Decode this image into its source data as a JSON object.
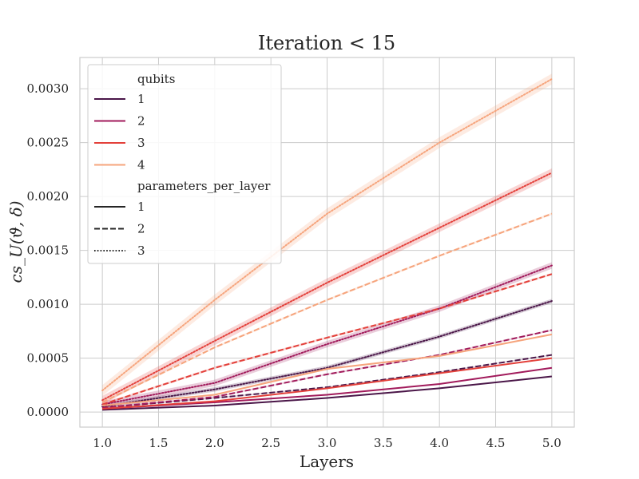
{
  "chart_data": {
    "type": "line",
    "title": "Iteration < 15",
    "xlabel": "Layers",
    "ylabel": "cs_U(ϑ, δ)",
    "xlim": [
      0.8,
      5.2
    ],
    "ylim": [
      -0.00014,
      0.00329
    ],
    "x_ticks": [
      1.0,
      1.5,
      2.0,
      2.5,
      3.0,
      3.5,
      4.0,
      4.5,
      5.0
    ],
    "x_tick_labels": [
      "1.0",
      "1.5",
      "2.0",
      "2.5",
      "3.0",
      "3.5",
      "4.0",
      "4.5",
      "5.0"
    ],
    "y_ticks": [
      0.0,
      0.0005,
      0.001,
      0.0015,
      0.002,
      0.0025,
      0.003
    ],
    "y_tick_labels": [
      "0.0000",
      "0.0005",
      "0.0010",
      "0.0015",
      "0.0020",
      "0.0025",
      "0.0030"
    ],
    "grid": true,
    "legend_position": "upper-left",
    "legend": {
      "hue_title": "qubits",
      "hue_entries": [
        {
          "label": "1",
          "color": "#4a1648"
        },
        {
          "label": "2",
          "color": "#a11a5b"
        },
        {
          "label": "3",
          "color": "#e3403a"
        },
        {
          "label": "4",
          "color": "#f6a47c"
        }
      ],
      "style_title": "parameters_per_layer",
      "style_entries": [
        {
          "label": "1",
          "dash": "solid"
        },
        {
          "label": "2",
          "dash": "dashed"
        },
        {
          "label": "3",
          "dash": "dotted"
        }
      ]
    },
    "x": [
      1,
      2,
      3,
      4,
      5
    ],
    "series": [
      {
        "qubits": "1",
        "parameters_per_layer": "1",
        "color": "#4a1648",
        "dash": "solid",
        "values": [
          2e-05,
          6e-05,
          0.00013,
          0.00022,
          0.00033
        ],
        "band": 4e-06
      },
      {
        "qubits": "1",
        "parameters_per_layer": "2",
        "color": "#4a1648",
        "dash": "dashed",
        "values": [
          4e-05,
          0.00013,
          0.00023,
          0.00037,
          0.00053
        ],
        "band": 6e-06
      },
      {
        "qubits": "1",
        "parameters_per_layer": "3",
        "color": "#4a1648",
        "dash": "dotted",
        "values": [
          5e-05,
          0.00021,
          0.00041,
          0.0007,
          0.00103
        ],
        "band": 2e-05
      },
      {
        "qubits": "2",
        "parameters_per_layer": "1",
        "color": "#a11a5b",
        "dash": "solid",
        "values": [
          3e-05,
          9e-05,
          0.00016,
          0.00026,
          0.00041
        ],
        "band": 5e-06
      },
      {
        "qubits": "2",
        "parameters_per_layer": "2",
        "color": "#a11a5b",
        "dash": "dashed",
        "values": [
          4e-05,
          0.00014,
          0.00035,
          0.00053,
          0.00076
        ],
        "band": 8e-06
      },
      {
        "qubits": "2",
        "parameters_per_layer": "3",
        "color": "#a11a5b",
        "dash": "dotted",
        "values": [
          7e-05,
          0.00027,
          0.00063,
          0.00096,
          0.00136
        ],
        "band": 3e-05
      },
      {
        "qubits": "3",
        "parameters_per_layer": "1",
        "color": "#e3403a",
        "dash": "solid",
        "values": [
          3e-05,
          0.0001,
          0.00022,
          0.00036,
          0.0005
        ],
        "band": 6e-06
      },
      {
        "qubits": "3",
        "parameters_per_layer": "2",
        "color": "#e3403a",
        "dash": "dashed",
        "values": [
          7e-05,
          0.00041,
          0.00069,
          0.00096,
          0.00128
        ],
        "band": 1e-05
      },
      {
        "qubits": "3",
        "parameters_per_layer": "3",
        "color": "#e3403a",
        "dash": "dotted",
        "values": [
          0.00011,
          0.00066,
          0.0012,
          0.00171,
          0.00222
        ],
        "band": 4e-05
      },
      {
        "qubits": "4",
        "parameters_per_layer": "1",
        "color": "#f6a47c",
        "dash": "solid",
        "values": [
          6e-05,
          0.00016,
          0.0004,
          0.00052,
          0.00072
        ],
        "band": 8e-06
      },
      {
        "qubits": "4",
        "parameters_per_layer": "2",
        "color": "#f6a47c",
        "dash": "dashed",
        "values": [
          9e-05,
          0.0006,
          0.00104,
          0.00145,
          0.00184
        ],
        "band": 1e-05
      },
      {
        "qubits": "4",
        "parameters_per_layer": "3",
        "color": "#f6a47c",
        "dash": "dotted",
        "values": [
          0.0002,
          0.00104,
          0.00184,
          0.0025,
          0.00309
        ],
        "band": 5e-05
      }
    ]
  }
}
